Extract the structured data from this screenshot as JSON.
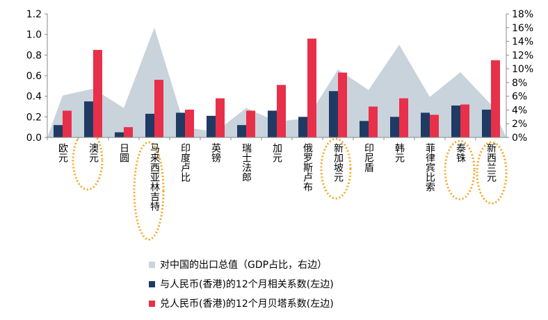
{
  "chart_data": {
    "type": "bar",
    "categories": [
      "欧元",
      "澳元",
      "日圆",
      "马来西亚林吉特",
      "印度卢比",
      "英镑",
      "瑞士法郎",
      "加元",
      "俄罗斯卢布",
      "新加坡元",
      "印尼盾",
      "韩元",
      "菲律宾比索",
      "泰铢",
      "新西兰元"
    ],
    "series": [
      {
        "name": "对中国的出口总值（GDP占比，右边）",
        "color": "#c9d3dc",
        "axis": "y2",
        "type": "area",
        "values": [
          6.1,
          7.1,
          4.3,
          16,
          1.5,
          0.8,
          4.3,
          2.3,
          2.8,
          9.9,
          6.9,
          13.5,
          5.9,
          9.5,
          4.8
        ]
      },
      {
        "name": "与人民币(香港)的12个月相关系数(左边)",
        "color": "#1f3b63",
        "values": [
          0.12,
          0.35,
          0.05,
          0.23,
          0.24,
          0.21,
          0.12,
          0.26,
          0.2,
          0.45,
          0.16,
          0.2,
          0.24,
          0.31,
          0.27
        ]
      },
      {
        "name": "兑人民币(香港)的12个月贝塔系数(左边)",
        "color": "#e8304a",
        "values": [
          0.26,
          0.85,
          0.1,
          0.56,
          0.27,
          0.38,
          0.26,
          0.51,
          0.96,
          0.63,
          0.3,
          0.38,
          0.22,
          0.32,
          0.75
        ]
      }
    ],
    "ylim": [
      0,
      1.2
    ],
    "yticks": [
      {
        "value": 0,
        "label": "0.0"
      },
      0.2,
      0.4,
      0.6,
      0.8,
      {
        "value": 1,
        "label": "1.0"
      },
      1.2
    ],
    "y2lim": [
      0,
      18
    ],
    "y2ticks": [
      {
        "value": 0,
        "label": "0%"
      },
      {
        "value": 2,
        "label": "2%"
      },
      {
        "value": 4,
        "label": "4%"
      },
      {
        "value": 6,
        "label": "6%"
      },
      {
        "value": 8,
        "label": "8%"
      },
      {
        "value": 10,
        "label": "10%"
      },
      {
        "value": 12,
        "label": "12%"
      },
      {
        "value": 14,
        "label": "14%"
      },
      {
        "value": 16,
        "label": "16%"
      },
      {
        "value": 18,
        "label": "18%"
      }
    ]
  }
}
